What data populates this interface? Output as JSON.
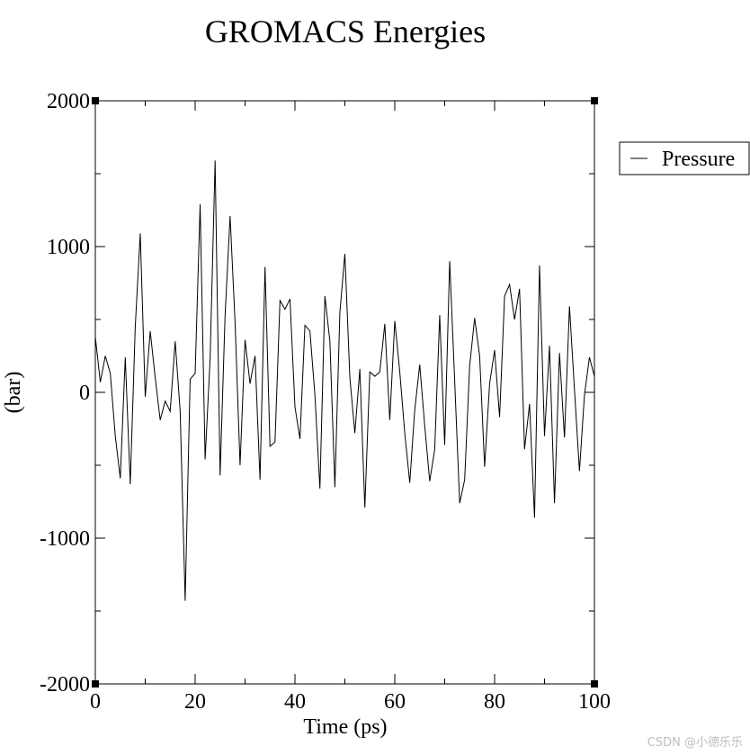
{
  "chart_data": {
    "type": "line",
    "title": "GROMACS Energies",
    "xlabel": "Time (ps)",
    "ylabel": "(bar)",
    "xlim": [
      0,
      100
    ],
    "ylim": [
      -2000,
      2000
    ],
    "x_ticks": [
      0,
      20,
      40,
      60,
      80,
      100
    ],
    "x_tick_labels": [
      "0",
      "20",
      "40",
      "60",
      "80",
      "100"
    ],
    "y_ticks": [
      -2000,
      -1000,
      0,
      1000,
      2000
    ],
    "y_tick_labels": [
      "-2000",
      "-1000",
      "0",
      "1000",
      "2000"
    ],
    "grid": false,
    "legend_position": "right, outside plot area, top",
    "series": [
      {
        "name": "Pressure",
        "color": "#000000",
        "x": [
          0,
          1,
          2,
          3,
          4,
          5,
          6,
          7,
          8,
          9,
          10,
          11,
          12,
          13,
          14,
          15,
          16,
          17,
          18,
          19,
          20,
          21,
          22,
          23,
          24,
          25,
          26,
          27,
          28,
          29,
          30,
          31,
          32,
          33,
          34,
          35,
          36,
          37,
          38,
          39,
          40,
          41,
          42,
          43,
          44,
          45,
          46,
          47,
          48,
          49,
          50,
          51,
          52,
          53,
          54,
          55,
          56,
          57,
          58,
          59,
          60,
          61,
          62,
          63,
          64,
          65,
          66,
          67,
          68,
          69,
          70,
          71,
          72,
          73,
          74,
          75,
          76,
          77,
          78,
          79,
          80,
          81,
          82,
          83,
          84,
          85,
          86,
          87,
          88,
          89,
          90,
          91,
          92,
          93,
          94,
          95,
          96,
          97,
          98,
          99,
          100
        ],
        "values": [
          380,
          70,
          250,
          130,
          -300,
          -590,
          240,
          -630,
          450,
          1090,
          -30,
          420,
          100,
          -190,
          -60,
          -130,
          350,
          -130,
          -1430,
          90,
          130,
          1290,
          -460,
          230,
          1590,
          -570,
          530,
          1210,
          480,
          -500,
          360,
          60,
          250,
          -600,
          860,
          -370,
          -340,
          630,
          570,
          640,
          -100,
          -320,
          460,
          420,
          -20,
          -660,
          660,
          350,
          -650,
          550,
          950,
          100,
          -280,
          160,
          -790,
          140,
          110,
          140,
          470,
          -190,
          490,
          140,
          -280,
          -620,
          -120,
          190,
          -230,
          -610,
          -390,
          530,
          -360,
          900,
          80,
          -760,
          -600,
          180,
          510,
          250,
          -510,
          60,
          290,
          -170,
          660,
          740,
          500,
          710,
          -390,
          -80,
          -860,
          870,
          -300,
          320,
          -760,
          270,
          -310,
          590,
          20,
          -540,
          -20,
          240,
          110
        ]
      }
    ],
    "legend": {
      "entries": [
        "Pressure"
      ]
    },
    "watermark": "CSDN @小德乐乐"
  }
}
